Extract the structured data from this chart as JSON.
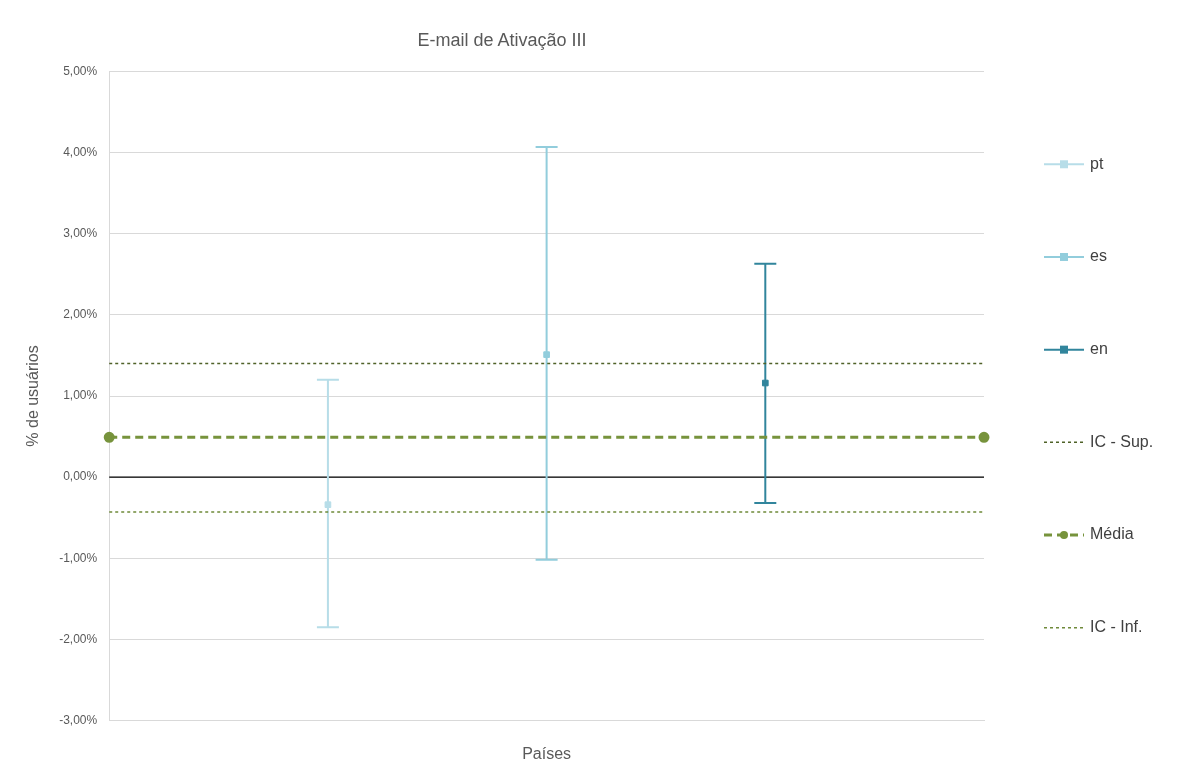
{
  "chart_data": {
    "type": "line",
    "title": "E-mail de Ativação III",
    "xlabel": "Países",
    "ylabel": "% de usuários",
    "categories": [
      null,
      null,
      null,
      null,
      null
    ],
    "ylim": [
      -3,
      5
    ],
    "yticks": [
      {
        "value": -3,
        "label": "-3,00%"
      },
      {
        "value": -2,
        "label": "-2,00%"
      },
      {
        "value": -1,
        "label": "-1,00%"
      },
      {
        "value": 0,
        "label": "0,00%"
      },
      {
        "value": 1,
        "label": "1,00%"
      },
      {
        "value": 2,
        "label": "2,00%"
      },
      {
        "value": 3,
        "label": "3,00%"
      },
      {
        "value": 4,
        "label": "4,00%"
      },
      {
        "value": 5,
        "label": "5,00%"
      }
    ],
    "grid": "y",
    "legend": "right",
    "ref_lines": [
      {
        "axis": "y",
        "value": 0,
        "color": "#000000"
      }
    ],
    "series": [
      {
        "name": "pt",
        "type": "scatter",
        "color": "#b7dde8",
        "marker": "square",
        "values": [
          null,
          -0.34,
          null,
          null,
          null
        ],
        "errors": [
          null,
          [
            -1.85,
            1.2
          ],
          null,
          null,
          null
        ]
      },
      {
        "name": "es",
        "type": "scatter",
        "color": "#92cddc",
        "marker": "square",
        "values": [
          null,
          null,
          1.51,
          null,
          null
        ],
        "errors": [
          null,
          null,
          [
            -1.02,
            4.07
          ],
          null,
          null
        ]
      },
      {
        "name": "en",
        "type": "scatter",
        "color": "#31859c",
        "marker": "square",
        "values": [
          null,
          null,
          null,
          1.16,
          null
        ],
        "errors": [
          null,
          null,
          null,
          [
            -0.32,
            2.63
          ],
          null
        ]
      },
      {
        "name": "IC - Sup.",
        "color": "#4f6228",
        "values": [
          1.4,
          1.4,
          1.4,
          1.4,
          1.4
        ],
        "marker": "none",
        "line_style": "dotted"
      },
      {
        "name": "Média",
        "color": "#77933c",
        "values": [
          0.49,
          null,
          null,
          null,
          0.49
        ],
        "marker": "circle",
        "line_style": "dashed"
      },
      {
        "name": "IC - Inf.",
        "color": "#6f8a3a",
        "values": [
          -0.43,
          -0.43,
          -0.43,
          -0.43,
          -0.43
        ],
        "marker": "none",
        "line_style": "dotted"
      }
    ]
  }
}
